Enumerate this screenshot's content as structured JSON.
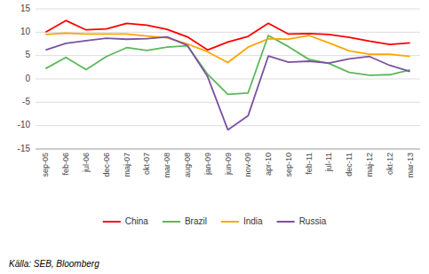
{
  "chart_data": {
    "type": "line",
    "categories": [
      "sep-05",
      "feb-06",
      "jul-06",
      "dec-06",
      "maj-07",
      "okt-07",
      "mar-08",
      "aug-08",
      "jan-09",
      "jun-09",
      "nov-09",
      "apr-10",
      "sep-10",
      "feb-11",
      "jul-11",
      "dec-11",
      "maj-12",
      "okt-12",
      "mar-13"
    ],
    "series": [
      {
        "name": "China",
        "color": "#FF0000",
        "values": [
          10.0,
          12.5,
          10.5,
          10.7,
          11.9,
          11.5,
          10.6,
          9.0,
          6.2,
          7.9,
          9.1,
          11.9,
          9.6,
          9.7,
          9.5,
          8.9,
          8.1,
          7.4,
          7.7
        ]
      },
      {
        "name": "Brazil",
        "color": "#5CB85C",
        "values": [
          2.2,
          4.6,
          2.0,
          4.8,
          6.7,
          6.1,
          6.8,
          7.1,
          1.0,
          -3.3,
          -3.0,
          9.3,
          6.9,
          4.2,
          3.3,
          1.4,
          0.8,
          0.9,
          1.9
        ]
      },
      {
        "name": "India",
        "color": "#FFA500",
        "values": [
          9.5,
          9.8,
          9.6,
          9.6,
          9.6,
          9.2,
          8.8,
          7.5,
          5.8,
          3.5,
          6.8,
          8.6,
          8.5,
          9.3,
          7.7,
          6.0,
          5.3,
          5.3,
          4.8
        ]
      },
      {
        "name": "Russia",
        "color": "#7B52A0",
        "values": [
          6.2,
          7.6,
          8.2,
          8.7,
          8.5,
          8.6,
          9.0,
          7.2,
          0.5,
          -10.9,
          -7.9,
          4.9,
          3.6,
          3.8,
          3.4,
          4.3,
          4.8,
          2.9,
          1.6
        ]
      }
    ],
    "ylim": [
      -15,
      15
    ],
    "yticks": [
      -15,
      -10,
      -5,
      0,
      5,
      10,
      15
    ],
    "grid": true,
    "legend": "bottom",
    "annotations": [
      "Källa: SEB, Bloomberg"
    ]
  }
}
